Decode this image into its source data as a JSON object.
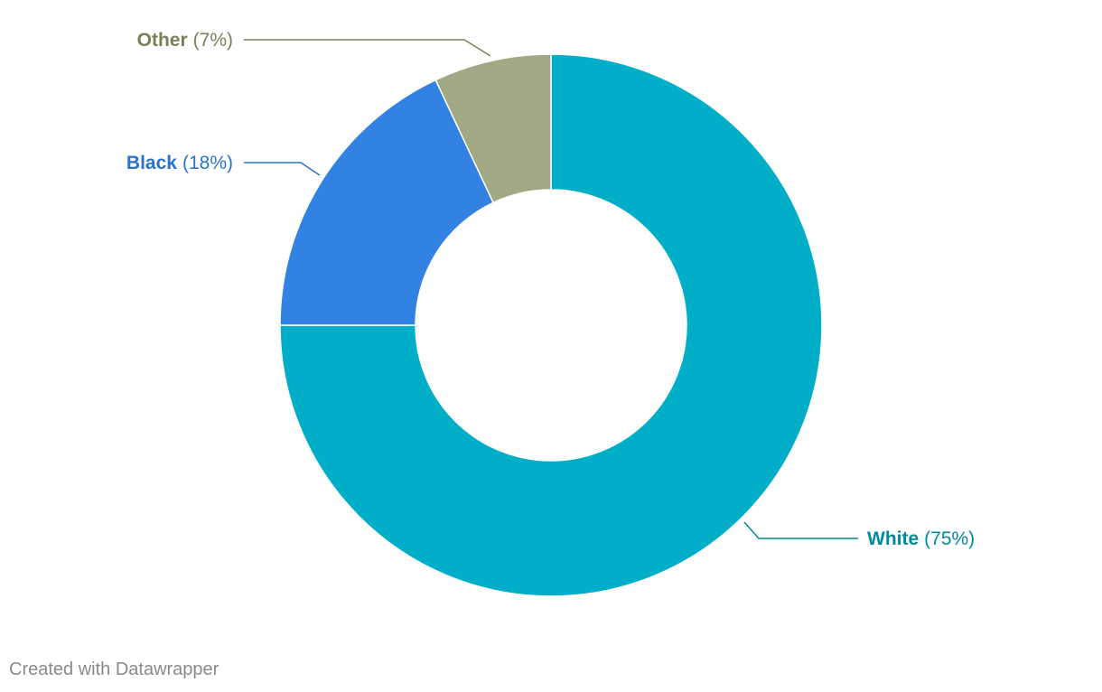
{
  "chart_data": {
    "type": "pie",
    "subtype": "donut",
    "slices": [
      {
        "name": "White",
        "value": 75,
        "display": "(75%)",
        "color": "#00aec7",
        "label_color": "#008a99"
      },
      {
        "name": "Black",
        "value": 18,
        "display": "(18%)",
        "color": "#3182e3",
        "label_color": "#2a73cc"
      },
      {
        "name": "Other",
        "value": 7,
        "display": "(7%)",
        "color": "#a2a883",
        "label_color": "#7a7f5a"
      }
    ]
  },
  "footer": {
    "credit": "Created with Datawrapper"
  }
}
